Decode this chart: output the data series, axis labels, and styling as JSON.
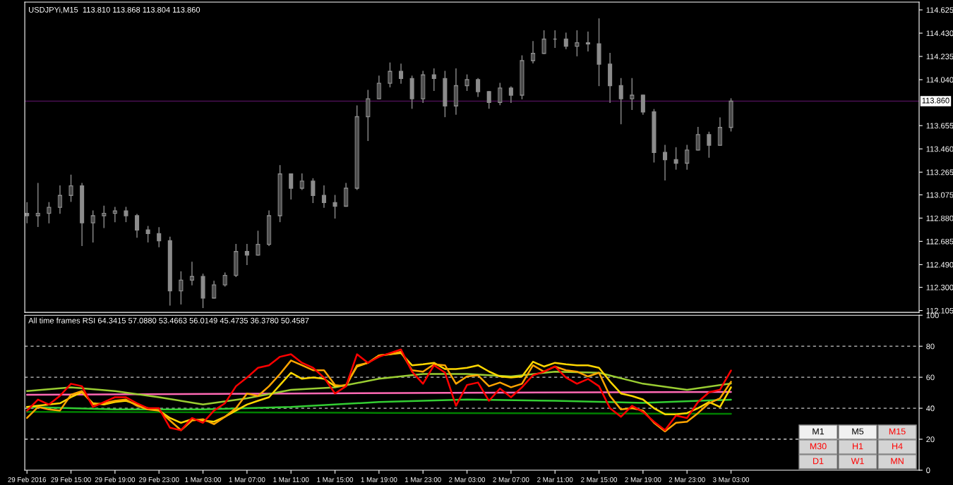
{
  "chart_data": [
    {
      "type": "candlestick",
      "title": "USDJPYi,M15  113.810 113.868 113.804 113.860",
      "color": "#8c8c8c",
      "tick_labels": "y",
      "xlim": [
        "2016-02-29T10:48",
        "2016-03-03T20:06"
      ],
      "ylim": [
        112.09,
        114.69
      ],
      "yticks": [
        114.625,
        {
          "value": 114.43,
          "label": "114.430"
        },
        114.235,
        {
          "value": 114.04,
          "label": "114.040"
        },
        113.655,
        {
          "value": 113.46,
          "label": "113.460"
        },
        113.265,
        113.075,
        {
          "value": 112.88,
          "label": "112.880"
        },
        112.685,
        {
          "value": 112.49,
          "label": "112.490"
        },
        {
          "value": 112.3,
          "label": "112.300"
        },
        112.105
      ],
      "ref_lines": [
        {
          "axis": "y",
          "value": 113.86,
          "label": "113.860",
          "color": "#4a0f52"
        }
      ],
      "x": [
        "2016-02-29T11:00",
        "2016-02-29T12:00",
        "2016-02-29T13:00",
        "2016-02-29T14:00",
        "2016-02-29T15:00",
        "2016-02-29T16:00",
        "2016-02-29T17:00",
        "2016-02-29T18:00",
        "2016-02-29T19:00",
        "2016-02-29T20:00",
        "2016-02-29T21:00",
        "2016-02-29T22:00",
        "2016-02-29T23:00",
        "2016-03-01T00:00",
        "2016-03-01T01:00",
        "2016-03-01T02:00",
        "2016-03-01T03:00",
        "2016-03-01T04:00",
        "2016-03-01T05:00",
        "2016-03-01T06:00",
        "2016-03-01T07:00",
        "2016-03-01T08:00",
        "2016-03-01T09:00",
        "2016-03-01T10:00",
        "2016-03-01T11:00",
        "2016-03-01T12:00",
        "2016-03-01T13:00",
        "2016-03-01T14:00",
        "2016-03-01T15:00",
        "2016-03-01T16:00",
        "2016-03-01T17:00",
        "2016-03-01T18:00",
        "2016-03-01T19:00",
        "2016-03-01T20:00",
        "2016-03-01T21:00",
        "2016-03-01T22:00",
        "2016-03-01T23:00",
        "2016-03-02T00:00",
        "2016-03-02T01:00",
        "2016-03-02T02:00",
        "2016-03-02T03:00",
        "2016-03-02T04:00",
        "2016-03-02T05:00",
        "2016-03-02T06:00",
        "2016-03-02T07:00",
        "2016-03-02T08:00",
        "2016-03-02T09:00",
        "2016-03-02T10:00",
        "2016-03-02T11:00",
        "2016-03-02T12:00",
        "2016-03-02T13:00",
        "2016-03-02T14:00",
        "2016-03-02T15:00",
        "2016-03-02T16:00",
        "2016-03-02T17:00",
        "2016-03-02T18:00",
        "2016-03-02T19:00",
        "2016-03-02T20:00",
        "2016-03-02T21:00",
        "2016-03-02T22:00",
        "2016-03-02T23:00",
        "2016-03-03T00:00",
        "2016-03-03T01:00",
        "2016-03-03T02:00",
        "2016-03-03T03:00"
      ],
      "ohlc": [
        [
          112.92,
          113.01,
          112.84,
          112.9
        ],
        [
          112.9,
          113.17,
          112.81,
          112.92
        ],
        [
          112.92,
          113.01,
          112.84,
          112.97
        ],
        [
          112.97,
          113.15,
          112.92,
          113.07
        ],
        [
          113.07,
          113.24,
          113.02,
          113.15
        ],
        [
          113.15,
          113.17,
          112.65,
          112.84
        ],
        [
          112.84,
          112.94,
          112.68,
          112.9
        ],
        [
          112.9,
          112.98,
          112.8,
          112.92
        ],
        [
          112.92,
          112.97,
          112.85,
          112.94
        ],
        [
          112.94,
          112.97,
          112.85,
          112.9
        ],
        [
          112.9,
          112.91,
          112.72,
          112.78
        ],
        [
          112.78,
          112.81,
          112.68,
          112.75
        ],
        [
          112.75,
          112.8,
          112.64,
          112.69
        ],
        [
          112.69,
          112.72,
          112.15,
          112.27
        ],
        [
          112.27,
          112.43,
          112.16,
          112.36
        ],
        [
          112.36,
          112.51,
          112.32,
          112.39
        ],
        [
          112.39,
          112.41,
          112.13,
          112.21
        ],
        [
          112.21,
          112.35,
          112.21,
          112.32
        ],
        [
          112.32,
          112.42,
          112.31,
          112.4
        ],
        [
          112.4,
          112.66,
          112.39,
          112.6
        ],
        [
          112.6,
          112.66,
          112.49,
          112.57
        ],
        [
          112.57,
          112.77,
          112.57,
          112.66
        ],
        [
          112.66,
          112.94,
          112.65,
          112.9
        ],
        [
          112.9,
          113.32,
          112.85,
          113.25
        ],
        [
          113.25,
          113.25,
          113.04,
          113.13
        ],
        [
          113.13,
          113.25,
          113.12,
          113.19
        ],
        [
          113.19,
          113.21,
          113.01,
          113.07
        ],
        [
          113.07,
          113.15,
          112.97,
          113.01
        ],
        [
          113.01,
          113.07,
          112.88,
          112.98
        ],
        [
          112.98,
          113.17,
          112.98,
          113.13
        ],
        [
          113.13,
          113.82,
          113.12,
          113.73
        ],
        [
          113.73,
          113.95,
          113.53,
          113.88
        ],
        [
          113.88,
          114.07,
          113.88,
          114.01
        ],
        [
          114.01,
          114.18,
          113.98,
          114.11
        ],
        [
          114.11,
          114.17,
          114.01,
          114.05
        ],
        [
          114.05,
          114.07,
          113.8,
          113.88
        ],
        [
          113.88,
          114.11,
          113.85,
          114.08
        ],
        [
          114.08,
          114.13,
          113.95,
          114.05
        ],
        [
          114.05,
          114.11,
          113.73,
          113.82
        ],
        [
          113.82,
          114.13,
          113.75,
          113.99
        ],
        [
          113.99,
          114.08,
          113.95,
          114.04
        ],
        [
          114.04,
          114.05,
          113.9,
          113.94
        ],
        [
          113.94,
          113.94,
          113.8,
          113.85
        ],
        [
          113.85,
          114.01,
          113.83,
          113.97
        ],
        [
          113.97,
          113.98,
          113.85,
          113.91
        ],
        [
          113.91,
          114.24,
          113.88,
          114.2
        ],
        [
          114.2,
          114.36,
          114.18,
          114.26
        ],
        [
          114.26,
          114.45,
          114.26,
          114.38
        ],
        [
          114.38,
          114.45,
          114.31,
          114.38
        ],
        [
          114.38,
          114.43,
          114.3,
          114.32
        ],
        [
          114.32,
          114.45,
          114.24,
          114.35
        ],
        [
          114.35,
          114.44,
          114.28,
          114.34
        ],
        [
          114.34,
          114.55,
          113.99,
          114.17
        ],
        [
          114.17,
          114.26,
          113.85,
          113.99
        ],
        [
          113.99,
          114.05,
          113.67,
          113.88
        ],
        [
          113.88,
          114.05,
          113.79,
          113.91
        ],
        [
          113.91,
          113.91,
          113.75,
          113.77
        ],
        [
          113.77,
          113.79,
          113.35,
          113.43
        ],
        [
          113.43,
          113.49,
          113.2,
          113.37
        ],
        [
          113.37,
          113.47,
          113.29,
          113.34
        ],
        [
          113.34,
          113.49,
          113.29,
          113.45
        ],
        [
          113.45,
          113.64,
          113.45,
          113.58
        ],
        [
          113.58,
          113.6,
          113.39,
          113.49
        ],
        [
          113.49,
          113.72,
          113.49,
          113.64
        ],
        [
          113.64,
          113.88,
          113.61,
          113.86
        ]
      ]
    },
    {
      "type": "line",
      "title": "All time frames RSI 64.3415 57.0880 53.4663 56.0149 45.4735 36.3780 50.4587",
      "xlim": [
        "2016-02-29T10:48",
        "2016-03-03T20:06"
      ],
      "ylim": [
        0,
        100
      ],
      "yticks": [
        0,
        20,
        40,
        60,
        80,
        100
      ],
      "xticks": [
        {
          "value": "2016-02-29T11:00",
          "label": "29 Feb 2016"
        },
        {
          "value": "2016-02-29T15:00",
          "label": "29 Feb 15:00"
        },
        {
          "value": "2016-02-29T19:00",
          "label": "29 Feb 19:00"
        },
        {
          "value": "2016-02-29T23:00",
          "label": "29 Feb 23:00"
        },
        {
          "value": "2016-03-01T03:00",
          "label": "1 Mar 03:00"
        },
        {
          "value": "2016-03-01T07:00",
          "label": "1 Mar 07:00"
        },
        {
          "value": "2016-03-01T11:00",
          "label": "1 Mar 11:00"
        },
        {
          "value": "2016-03-01T15:00",
          "label": "1 Mar 15:00"
        },
        {
          "value": "2016-03-01T19:00",
          "label": "1 Mar 19:00"
        },
        {
          "value": "2016-03-01T23:00",
          "label": "1 Mar 23:00"
        },
        {
          "value": "2016-03-02T03:00",
          "label": "2 Mar 03:00"
        },
        {
          "value": "2016-03-02T07:00",
          "label": "2 Mar 07:00"
        },
        {
          "value": "2016-03-02T11:00",
          "label": "2 Mar 11:00"
        },
        {
          "value": "2016-03-02T15:00",
          "label": "2 Mar 15:00"
        },
        {
          "value": "2016-03-02T19:00",
          "label": "2 Mar 19:00"
        },
        {
          "value": "2016-03-02T23:00",
          "label": "2 Mar 23:00"
        },
        {
          "value": "2016-03-03T03:00",
          "label": "3 Mar 03:00"
        }
      ],
      "ref_lines": [
        {
          "axis": "y",
          "value": 80,
          "color": "#c8c8c8",
          "line_style": "dashed"
        },
        {
          "axis": "y",
          "value": 60,
          "color": "#c8c8c8",
          "line_style": "dashed"
        },
        {
          "axis": "y",
          "value": 40,
          "color": "#c8c8c8",
          "line_style": "dashed"
        },
        {
          "axis": "y",
          "value": 20,
          "color": "#c8c8c8",
          "line_style": "dashed"
        }
      ],
      "annotations": [
        "M1",
        "M5",
        "M15",
        "M30",
        "H1",
        "H4",
        "D1",
        "W1",
        "MN"
      ],
      "x": [
        "2016-02-29T11:00",
        "2016-02-29T12:00",
        "2016-02-29T13:00",
        "2016-02-29T14:00",
        "2016-02-29T15:00",
        "2016-02-29T16:00",
        "2016-02-29T17:00",
        "2016-02-29T18:00",
        "2016-02-29T19:00",
        "2016-02-29T20:00",
        "2016-02-29T21:00",
        "2016-02-29T22:00",
        "2016-02-29T23:00",
        "2016-03-01T00:00",
        "2016-03-01T01:00",
        "2016-03-01T02:00",
        "2016-03-01T03:00",
        "2016-03-01T04:00",
        "2016-03-01T05:00",
        "2016-03-01T06:00",
        "2016-03-01T07:00",
        "2016-03-01T08:00",
        "2016-03-01T09:00",
        "2016-03-01T10:00",
        "2016-03-01T11:00",
        "2016-03-01T12:00",
        "2016-03-01T13:00",
        "2016-03-01T14:00",
        "2016-03-01T15:00",
        "2016-03-01T16:00",
        "2016-03-01T17:00",
        "2016-03-01T18:00",
        "2016-03-01T19:00",
        "2016-03-01T20:00",
        "2016-03-01T21:00",
        "2016-03-01T22:00",
        "2016-03-01T23:00",
        "2016-03-02T00:00",
        "2016-03-02T01:00",
        "2016-03-02T02:00",
        "2016-03-02T03:00",
        "2016-03-02T04:00",
        "2016-03-02T05:00",
        "2016-03-02T06:00",
        "2016-03-02T07:00",
        "2016-03-02T08:00",
        "2016-03-02T09:00",
        "2016-03-02T10:00",
        "2016-03-02T11:00",
        "2016-03-02T12:00",
        "2016-03-02T13:00",
        "2016-03-02T14:00",
        "2016-03-02T15:00",
        "2016-03-02T16:00",
        "2016-03-02T17:00",
        "2016-03-02T18:00",
        "2016-03-02T19:00",
        "2016-03-02T20:00",
        "2016-03-02T21:00",
        "2016-03-02T22:00",
        "2016-03-02T23:00",
        "2016-03-03T00:00",
        "2016-03-03T01:00",
        "2016-03-03T02:00",
        "2016-03-03T03:00"
      ],
      "series": [
        {
          "color": "#008000",
          "x": [
            "2016-02-29T11:00",
            "2016-03-01T19:00",
            "2016-03-03T03:00"
          ],
          "values": [
            37.7,
            37.0,
            36.4
          ]
        },
        {
          "color": "#32cd32",
          "x": [
            "2016-02-29T11:00",
            "2016-02-29T19:00",
            "2016-03-01T03:00",
            "2016-03-01T11:00",
            "2016-03-01T19:00",
            "2016-03-02T03:00",
            "2016-03-02T11:00",
            "2016-03-02T19:00",
            "2016-03-03T03:00"
          ],
          "values": [
            40.8,
            39.2,
            39.2,
            40.8,
            44.0,
            45.6,
            44.8,
            43.5,
            45.5
          ]
        },
        {
          "color": "#ff69b4",
          "x": [
            "2016-02-29T11:00",
            "2016-03-01T11:00",
            "2016-03-02T15:00",
            "2016-03-03T03:00"
          ],
          "values": [
            48.7,
            49.5,
            50.3,
            50.5
          ]
        },
        {
          "color": "#9acd32",
          "x": [
            "2016-02-29T11:00",
            "2016-02-29T15:00",
            "2016-02-29T19:00",
            "2016-02-29T23:00",
            "2016-03-01T03:00",
            "2016-03-01T07:00",
            "2016-03-01T11:00",
            "2016-03-01T15:00",
            "2016-03-01T19:00",
            "2016-03-01T23:00",
            "2016-03-02T03:00",
            "2016-03-02T07:00",
            "2016-03-02T11:00",
            "2016-03-02T15:00",
            "2016-03-02T19:00",
            "2016-03-02T23:00",
            "2016-03-03T03:00"
          ],
          "values": [
            51.1,
            53.5,
            51.1,
            47.1,
            42.4,
            46.4,
            51.9,
            53.5,
            59.0,
            62.1,
            62.1,
            60.5,
            63.6,
            62.9,
            55.8,
            51.9,
            56.0
          ]
        },
        {
          "color": "#ffd700",
          "values": [
            40.8,
            41.6,
            42.4,
            43.2,
            47.1,
            50.3,
            43.2,
            42.4,
            44.0,
            44.8,
            42.4,
            40.0,
            38.5,
            33.7,
            30.6,
            32.9,
            32.1,
            31.3,
            34.5,
            38.5,
            42.4,
            44.8,
            47.1,
            55.0,
            62.9,
            59.0,
            59.8,
            59.0,
            54.2,
            55.0,
            66.9,
            69.3,
            74.0,
            74.8,
            75.6,
            67.7,
            68.4,
            69.3,
            65.3,
            65.3,
            66.1,
            67.7,
            63.7,
            60.5,
            59.8,
            60.5,
            70.0,
            66.9,
            69.3,
            68.4,
            67.7,
            67.7,
            66.1,
            57.3,
            49.5,
            47.9,
            45.6,
            40.0,
            36.1,
            36.1,
            36.9,
            40.0,
            44.0,
            40.8,
            53.5
          ]
        },
        {
          "color": "#ffa500",
          "values": [
            33.7,
            40.8,
            39.2,
            38.5,
            48.7,
            51.1,
            42.4,
            43.2,
            44.8,
            45.6,
            41.6,
            39.2,
            38.5,
            32.1,
            25.8,
            32.1,
            32.9,
            29.7,
            34.5,
            40.0,
            49.5,
            47.9,
            54.2,
            62.1,
            70.8,
            67.7,
            64.5,
            64.5,
            55.0,
            54.2,
            67.7,
            69.3,
            74.0,
            74.8,
            76.4,
            64.5,
            63.6,
            68.4,
            67.7,
            55.8,
            60.5,
            61.3,
            54.2,
            56.6,
            53.5,
            55.8,
            67.7,
            63.6,
            66.9,
            64.5,
            63.6,
            60.5,
            62.9,
            47.9,
            39.2,
            40.0,
            38.5,
            30.6,
            25.0,
            30.6,
            31.3,
            36.9,
            43.2,
            46.4,
            57.1
          ]
        },
        {
          "color": "#ff0000",
          "values": [
            38.4,
            45.6,
            42.4,
            48.0,
            55.8,
            54.2,
            40.8,
            44.0,
            47.1,
            47.1,
            43.2,
            40.0,
            40.0,
            27.4,
            25.8,
            33.7,
            30.6,
            38.5,
            43.2,
            54.2,
            59.8,
            66.1,
            67.7,
            73.2,
            74.8,
            69.3,
            66.1,
            59.8,
            49.5,
            54.2,
            74.8,
            69.3,
            73.2,
            75.6,
            77.9,
            63.6,
            55.8,
            67.7,
            63.0,
            41.6,
            55.0,
            56.6,
            44.8,
            52.7,
            47.1,
            53.5,
            61.3,
            63.6,
            66.9,
            59.8,
            55.8,
            58.9,
            54.2,
            40.0,
            34.5,
            41.6,
            37.6,
            31.3,
            25.8,
            35.3,
            33.7,
            44.0,
            50.3,
            51.9,
            64.3
          ]
        }
      ]
    }
  ]
}
